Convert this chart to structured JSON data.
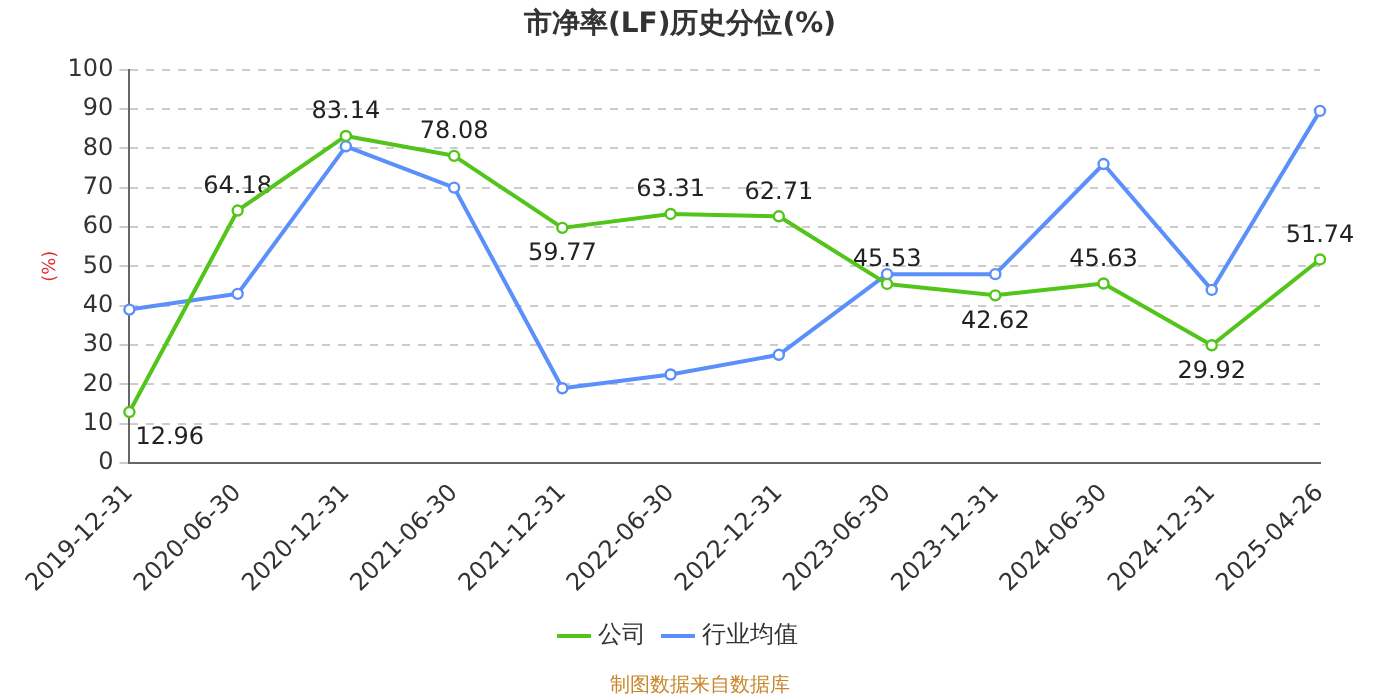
{
  "chart_data": {
    "type": "line",
    "title": "市净率(LF)历史分位(%)",
    "ylabel": "(%)",
    "categories": [
      "2019-12-31",
      "2020-06-30",
      "2020-12-31",
      "2021-06-30",
      "2021-12-31",
      "2022-06-30",
      "2022-12-31",
      "2023-06-30",
      "2023-12-31",
      "2024-06-30",
      "2024-12-31",
      "2025-04-26"
    ],
    "series": [
      {
        "name": "公司",
        "color": "#52c41a",
        "values": [
          12.96,
          64.18,
          83.14,
          78.08,
          59.77,
          63.31,
          62.71,
          45.53,
          42.62,
          45.63,
          29.92,
          51.74
        ],
        "value_labels": [
          "12.96",
          "64.18",
          "83.14",
          "78.08",
          "59.77",
          "63.31",
          "62.71",
          "45.53",
          "42.62",
          "45.63",
          "29.92",
          "51.74"
        ]
      },
      {
        "name": "行业均值",
        "color": "#5b8ff9",
        "values": [
          39,
          43,
          80.5,
          70,
          19,
          22.5,
          27.5,
          48,
          48,
          76,
          44,
          89.5
        ]
      }
    ],
    "ylim": [
      0,
      100
    ],
    "yticks": [
      0,
      10,
      20,
      30,
      40,
      50,
      60,
      70,
      80,
      90,
      100
    ],
    "grid": "y",
    "legend": "bottom",
    "marker": "circle",
    "line_style": "solid",
    "annotations": [
      "制图数据来自数据库"
    ]
  }
}
